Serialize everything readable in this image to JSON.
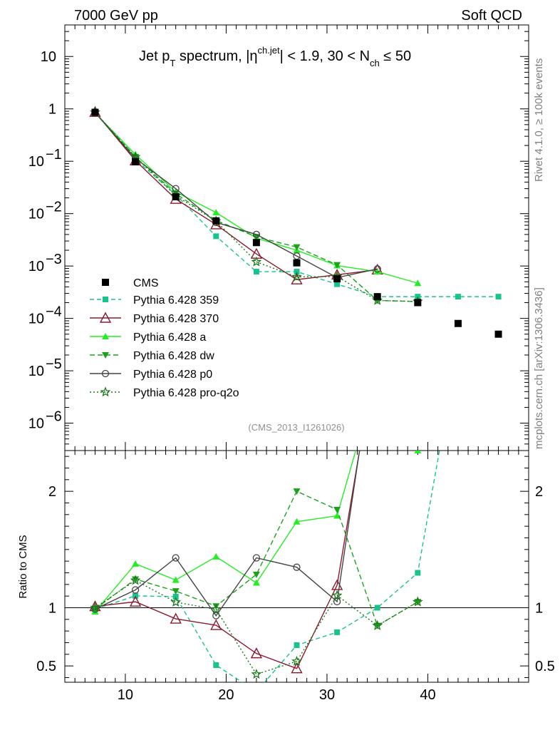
{
  "header": {
    "left": "7000 GeV pp",
    "right": "Soft QCD"
  },
  "side": {
    "rivet": "Rivet 4.1.0, ≥ 100k events",
    "mcplots": "mcplots.cern.ch [arXiv:1306.3436]"
  },
  "chart_data": {
    "type": "line",
    "title": {
      "p1": "Jet p",
      "s1": "T",
      "p2": " spectrum, |η",
      "s2": "ch.jet",
      "p3": "| < 1.9, 30 < N",
      "s3": "ch",
      "p4": " ≤ 50"
    },
    "analysis_label": "(CMS_2013_I1261026)",
    "ratio_ylabel": "Ratio to CMS",
    "xlim": [
      4,
      50
    ],
    "ylim_main": [
      3e-07,
      40
    ],
    "ylim_ratio": [
      0.36,
      2.35
    ],
    "x_ticks": [
      10,
      20,
      30,
      40
    ],
    "y_ticks_main": [
      {
        "v": 10,
        "b": "10",
        "e": ""
      },
      {
        "v": 1,
        "b": "1",
        "e": ""
      },
      {
        "v": 0.1,
        "b": "10",
        "e": "−1"
      },
      {
        "v": 0.01,
        "b": "10",
        "e": "−2"
      },
      {
        "v": 0.001,
        "b": "10",
        "e": "−3"
      },
      {
        "v": 0.0001,
        "b": "10",
        "e": "−4"
      },
      {
        "v": 1e-05,
        "b": "10",
        "e": "−5"
      },
      {
        "v": 1e-06,
        "b": "10",
        "e": "−6"
      }
    ],
    "y_ticks_ratio": [
      {
        "v": 0.5,
        "l": "0.5"
      },
      {
        "v": 1,
        "l": "1"
      },
      {
        "v": 2,
        "l": "2"
      }
    ],
    "reference": {
      "name": "CMS",
      "x": [
        7,
        11,
        15,
        19,
        23,
        27,
        31,
        35,
        39,
        43,
        47
      ],
      "y": [
        0.86,
        0.098,
        0.021,
        0.0073,
        0.0028,
        0.00115,
        0.00057,
        0.00026,
        0.0002,
        8e-05,
        5e-05
      ]
    },
    "series": [
      {
        "name": "Pythia 6.428 359",
        "color": "#19c38e",
        "dash": "6,4",
        "marker": "square",
        "x": [
          7,
          11,
          15,
          19,
          23,
          27,
          31,
          35,
          39,
          43,
          47
        ],
        "y": [
          0.85,
          0.108,
          0.023,
          0.0037,
          0.00078,
          0.00078,
          0.00045,
          0.00026,
          0.00026,
          0.00026,
          0.00026
        ]
      },
      {
        "name": "Pythia 6.428 370",
        "color": "#8b1a2e",
        "dash": "",
        "marker": "triangle-open",
        "x": [
          7,
          11,
          15,
          19,
          23,
          27,
          31,
          35
        ],
        "y": [
          0.87,
          0.103,
          0.019,
          0.0062,
          0.0017,
          0.00055,
          0.00068,
          0.00085
        ]
      },
      {
        "name": "Pythia 6.428 a",
        "color": "#22ee22",
        "dash": "",
        "marker": "triangle",
        "x": [
          7,
          11,
          15,
          19,
          23,
          27,
          31,
          35,
          39
        ],
        "y": [
          0.83,
          0.135,
          0.026,
          0.0105,
          0.0034,
          0.002,
          0.00102,
          0.00078,
          0.00047
        ]
      },
      {
        "name": "Pythia 6.428 dw",
        "color": "#1aa31a",
        "dash": "7,4",
        "marker": "triangle-down",
        "x": [
          7,
          11,
          15,
          19,
          23,
          27,
          31,
          35,
          39
        ],
        "y": [
          0.85,
          0.122,
          0.024,
          0.0074,
          0.0036,
          0.0023,
          0.00105,
          0.00022,
          0.00021
        ]
      },
      {
        "name": "Pythia 6.428 p0",
        "color": "#444444",
        "dash": "",
        "marker": "circle-open",
        "x": [
          7,
          11,
          15,
          19,
          23,
          27,
          31,
          35
        ],
        "y": [
          0.85,
          0.113,
          0.03,
          0.0068,
          0.004,
          0.00155,
          0.0006,
          0.00088
        ]
      },
      {
        "name": "Pythia 6.428 pro-q2o",
        "color": "#1a7a1a",
        "dash": "2,3",
        "marker": "star",
        "x": [
          7,
          11,
          15,
          19,
          23,
          27,
          31,
          35,
          39
        ],
        "y": [
          0.86,
          0.121,
          0.022,
          0.0072,
          0.0012,
          0.00062,
          0.00063,
          0.00022,
          0.00021
        ]
      }
    ]
  }
}
